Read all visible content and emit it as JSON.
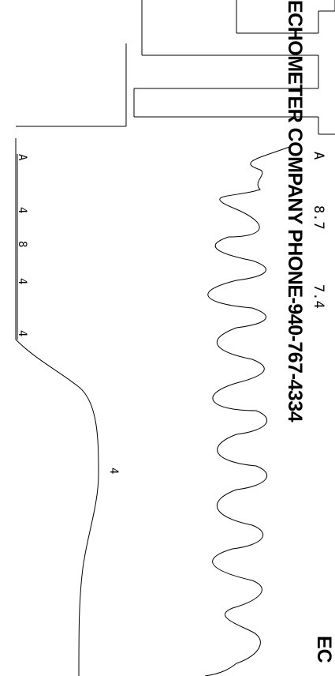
{
  "header": {
    "company_text": "ECHOMETER COMPANY PHONE-940-767-4334",
    "company_text_2": "EC"
  },
  "readings": [
    "A",
    "8.7",
    "7.4"
  ],
  "markers": [
    "A",
    "4",
    "8",
    "4",
    "4",
    "4"
  ]
}
